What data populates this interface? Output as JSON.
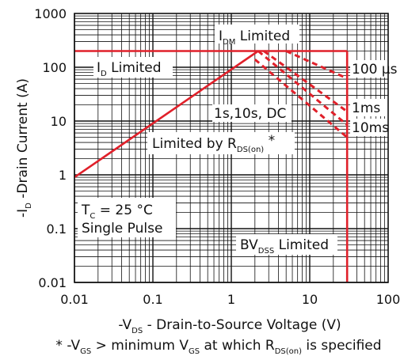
{
  "chart_data": {
    "type": "line",
    "title": "",
    "xscale": "log",
    "yscale": "log",
    "xlim": [
      0.01,
      100
    ],
    "ylim": [
      0.01,
      1000
    ],
    "grid": true,
    "x_ticks": [
      "0.01",
      "0.1",
      "1",
      "10",
      "100"
    ],
    "y_ticks": [
      "0.01",
      "0.1",
      "1",
      "10",
      "100",
      "1000"
    ],
    "xlabel": {
      "prefix": "-V",
      "sub": "DS",
      "suffix": " - Drain-to-Source Voltage (V)"
    },
    "ylabel": {
      "prefix": "-I",
      "sub": "D",
      "suffix": " -Drain Current (A)"
    },
    "footnote": {
      "p1": "* -V",
      "s1": "GS",
      "p2": " > minimum V",
      "s2": "GS",
      "p3": " at which R",
      "s3": "DS(on)",
      "p4": " is specified"
    },
    "series": [
      {
        "name": "Limited by RDS(on)",
        "style": "solid",
        "color": "#e0202a",
        "points": [
          [
            0.01,
            0.9
          ],
          [
            2.2,
            200
          ]
        ]
      },
      {
        "name": "ID Limited",
        "style": "solid",
        "color": "#e0202a",
        "points": [
          [
            0.01,
            200
          ],
          [
            30,
            200
          ]
        ]
      },
      {
        "name": "BVDSS Limited",
        "style": "solid",
        "color": "#e0202a",
        "points": [
          [
            30,
            200
          ],
          [
            30,
            0.01
          ]
        ]
      },
      {
        "name": "100 µs",
        "style": "dashed",
        "color": "#e0202a",
        "points": [
          [
            5,
            200
          ],
          [
            30,
            62
          ]
        ]
      },
      {
        "name": "1ms",
        "style": "dashed",
        "color": "#e0202a",
        "points": [
          [
            2.6,
            200
          ],
          [
            30,
            15
          ]
        ]
      },
      {
        "name": "10ms",
        "style": "dashed",
        "color": "#e0202a",
        "points": [
          [
            2.2,
            200
          ],
          [
            30,
            8.5
          ]
        ]
      },
      {
        "name": "1s,10s, DC",
        "style": "dashed",
        "color": "#e0202a",
        "points": [
          [
            2,
            140
          ],
          [
            30,
            5
          ]
        ]
      }
    ],
    "annotations": {
      "idm_prefix": "I",
      "idm_sub": "DM",
      "idm_suffix": " Limited",
      "id_prefix": "I",
      "id_sub": "D",
      "id_suffix": " Limited",
      "us100": "100 µs",
      "ms1": "1ms",
      "ms10": "10ms",
      "dc": "1s,10s, DC",
      "rds_prefix": "Limited by R",
      "rds_sub": "DS(on)",
      "rds_suffix": " *",
      "tc_prefix": "T",
      "tc_sub": "C",
      "tc_suffix": " = 25 °C",
      "pulse": "Single Pulse",
      "bv_prefix": "BV",
      "bv_sub": "DSS",
      "bv_suffix": " Limited"
    },
    "colors": {
      "limit": "#e0202a",
      "grid": "#111111"
    }
  }
}
